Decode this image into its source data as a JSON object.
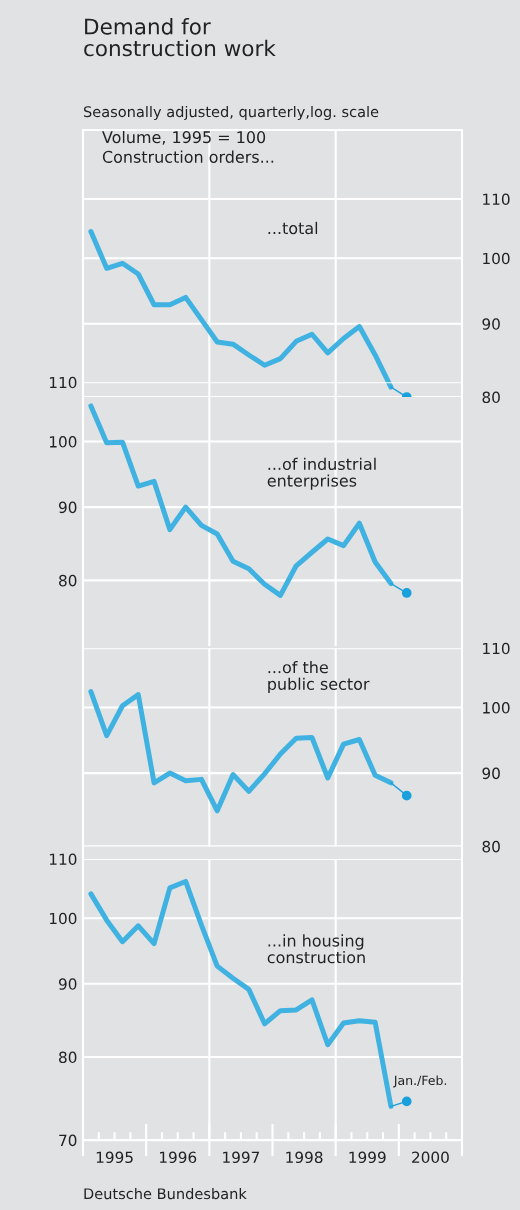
{
  "chart_data": [
    {
      "type": "line",
      "title": "Demand for\nconstruction work",
      "subtitle": "Seasonally adjusted, quarterly,log. scale",
      "annotations": [
        "Volume, 1995 = 100\nConstruction orders...",
        "...total"
      ],
      "xlim": [
        1995,
        2001
      ],
      "y2lim": [
        80,
        123
      ],
      "y2ticks": [
        80,
        90,
        100,
        110
      ],
      "log": "y2",
      "grid": "y",
      "tick_labels": "y2",
      "ref_lines": [
        {
          "axis": "x",
          "value": 1997,
          "color": "#ffffff"
        },
        {
          "axis": "x",
          "value": 1999,
          "color": "#ffffff"
        }
      ],
      "series": [
        {
          "axis": "y2",
          "color": "#3fb2e2",
          "x": [
            1995.125,
            1995.375,
            1995.625,
            1995.875,
            1996.125,
            1996.375,
            1996.625,
            1996.875,
            1997.125,
            1997.375,
            1997.625,
            1997.875,
            1998.125,
            1998.375,
            1998.625,
            1998.875,
            1999.125,
            1999.375,
            1999.625,
            1999.875
          ],
          "values": [
            104.4,
            98.4,
            99.2,
            97.5,
            92.8,
            92.8,
            93.9,
            90.6,
            87.4,
            87.1,
            85.6,
            84.2,
            85.1,
            87.5,
            88.5,
            85.9,
            87.9,
            89.6,
            85.6,
            81.3
          ]
        },
        {
          "axis": "y2",
          "marker": "circle",
          "color": "#1aa0dc",
          "x": [
            1999.875,
            2000.125
          ],
          "values": [
            81.3,
            80.0
          ]
        }
      ]
    },
    {
      "type": "line",
      "annotations": [
        "...of industrial\nenterprises"
      ],
      "xlim": [
        1995,
        2001
      ],
      "ylim": [
        72,
        110
      ],
      "yticks": [
        80,
        90,
        100,
        110
      ],
      "log": "y",
      "grid": "y",
      "tick_labels": "y",
      "ref_lines": [
        {
          "axis": "x",
          "value": 1997,
          "color": "#ffffff"
        },
        {
          "axis": "x",
          "value": 1999,
          "color": "#ffffff"
        }
      ],
      "series": [
        {
          "color": "#3fb2e2",
          "x": [
            1995.125,
            1995.375,
            1995.625,
            1995.875,
            1996.125,
            1996.375,
            1996.625,
            1996.875,
            1997.125,
            1997.375,
            1997.625,
            1997.875,
            1998.125,
            1998.375,
            1998.625,
            1998.875,
            1999.125,
            1999.375,
            1999.625,
            1999.875
          ],
          "values": [
            105.9,
            99.8,
            99.9,
            93.1,
            93.8,
            86.8,
            90.0,
            87.4,
            86.2,
            82.5,
            81.5,
            79.5,
            78.1,
            81.9,
            83.7,
            85.5,
            84.6,
            87.7,
            82.4,
            79.6
          ]
        },
        {
          "marker": "circle",
          "color": "#1aa0dc",
          "x": [
            1999.875,
            2000.125
          ],
          "values": [
            79.6,
            78.4
          ]
        }
      ]
    },
    {
      "type": "line",
      "annotations": [
        "...of the\npublic sector"
      ],
      "xlim": [
        1995,
        2001
      ],
      "y2lim": [
        80,
        110
      ],
      "y2ticks": [
        80,
        90,
        100,
        110
      ],
      "log": "y2",
      "grid": "y",
      "tick_labels": "y2",
      "ref_lines": [
        {
          "axis": "x",
          "value": 1997,
          "color": "#ffffff"
        },
        {
          "axis": "x",
          "value": 1999,
          "color": "#ffffff"
        }
      ],
      "series": [
        {
          "axis": "y2",
          "color": "#3fb2e2",
          "x": [
            1995.125,
            1995.375,
            1995.625,
            1995.875,
            1996.125,
            1996.375,
            1996.625,
            1996.875,
            1997.125,
            1997.375,
            1997.625,
            1997.875,
            1998.125,
            1998.375,
            1998.625,
            1998.875,
            1999.125,
            1999.375,
            1999.625,
            1999.875
          ],
          "values": [
            102.6,
            95.6,
            100.3,
            102.1,
            88.6,
            90.0,
            88.9,
            89.1,
            84.7,
            89.8,
            87.4,
            89.9,
            92.8,
            95.2,
            95.3,
            89.3,
            94.3,
            95.0,
            89.7,
            88.6
          ]
        },
        {
          "axis": "y2",
          "marker": "circle",
          "color": "#1aa0dc",
          "x": [
            1999.875,
            2000.125
          ],
          "values": [
            88.6,
            86.8
          ]
        }
      ]
    },
    {
      "type": "line",
      "annotations": [
        "...in housing\nconstruction",
        {
          "text": "Jan./Feb.",
          "x": 2000.125,
          "y": 74.5
        },
        "Deutsche Bundesbank"
      ],
      "xlim": [
        1995,
        2001
      ],
      "xticks": [
        {
          "value": 1995.5,
          "label": "1995"
        },
        {
          "value": 1996.5,
          "label": "1996"
        },
        {
          "value": 1997.5,
          "label": "1997"
        },
        {
          "value": 1998.5,
          "label": "1998"
        },
        {
          "value": 1999.5,
          "label": "1999"
        },
        {
          "value": 2000.5,
          "label": "2000"
        }
      ],
      "ylim": [
        70,
        110
      ],
      "yticks": [
        70,
        80,
        90,
        100,
        110
      ],
      "log": "y",
      "grid": "y",
      "ref_lines": [
        {
          "axis": "x",
          "value": 1997,
          "color": "#ffffff"
        },
        {
          "axis": "x",
          "value": 1999,
          "color": "#ffffff"
        }
      ],
      "series": [
        {
          "color": "#3fb2e2",
          "x": [
            1995.125,
            1995.375,
            1995.625,
            1995.875,
            1996.125,
            1996.375,
            1996.625,
            1996.875,
            1997.125,
            1997.375,
            1997.625,
            1997.875,
            1998.125,
            1998.375,
            1998.625,
            1998.875,
            1999.125,
            1999.375,
            1999.625,
            1999.875
          ],
          "values": [
            104.0,
            99.7,
            96.3,
            98.8,
            96.0,
            105.0,
            106.1,
            98.9,
            92.6,
            90.8,
            89.2,
            84.4,
            86.2,
            86.3,
            87.7,
            81.6,
            84.5,
            84.8,
            84.6,
            73.9
          ]
        },
        {
          "marker": "circle",
          "color": "#1aa0dc",
          "x": [
            1999.875,
            2000.125
          ],
          "values": [
            73.9,
            74.5
          ]
        }
      ]
    }
  ]
}
